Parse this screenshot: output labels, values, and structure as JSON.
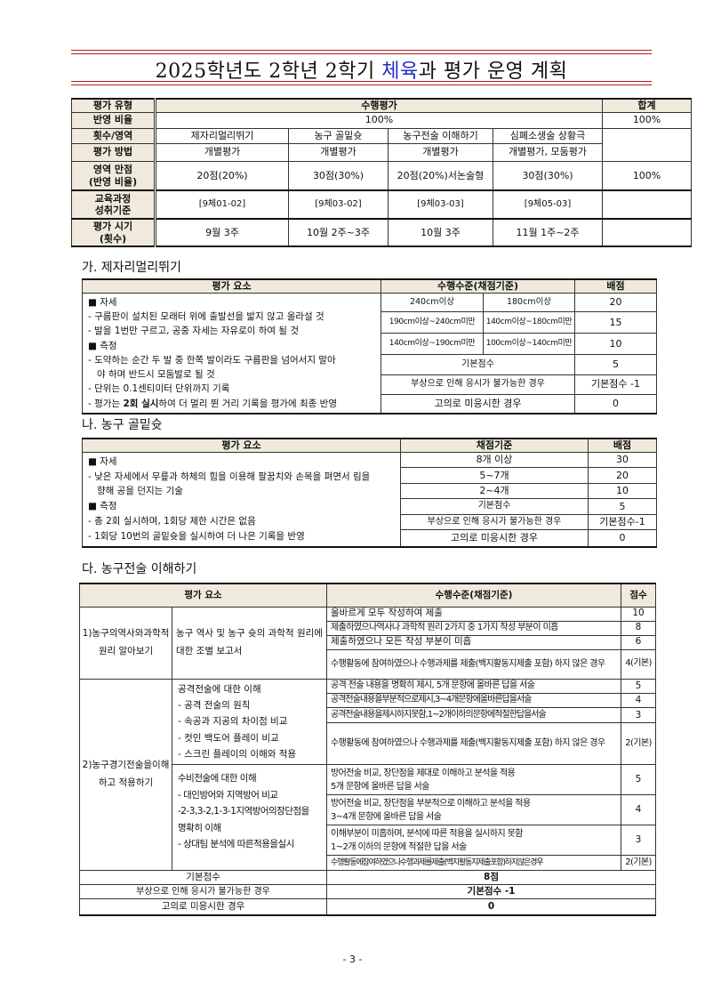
{
  "title": {
    "pre": "2025학년도 2학년 2학기 ",
    "highlight": "체육",
    "post": "과 평가 운영 계획",
    "highlight_color": "#2030c0"
  },
  "overview": {
    "row_labels": [
      "평가 유형",
      "반영 비율",
      "횟수/영역",
      "평가 방법",
      "영역 만점\n(반영 비율)",
      "교육과정\n성취기준",
      "평가 시기\n(횟수)"
    ],
    "type": "수행평가",
    "total_label": "합계",
    "ratio": "100%",
    "ratio_total": "100%",
    "areas": [
      "제자리멀리뛰기",
      "농구 골밑슛",
      "농구전술 이해하기",
      "심폐소생술 상황극"
    ],
    "methods": [
      "개별평가",
      "개별평가",
      "개별평가",
      "개별평가, 모둠평가"
    ],
    "scores": [
      "20점(20%)",
      "30점(30%)",
      "20점(20%)서논술형",
      "30점(30%)"
    ],
    "score_total": "100%",
    "standards": [
      "[9체01-02]",
      "[9체03-02]",
      "[9체03-03]",
      "[9체05-03]"
    ],
    "periods": [
      "9월 3주",
      "10월 2주~3주",
      "10월 3주",
      "11월 1주~2주"
    ]
  },
  "sec1": {
    "heading": "가. 제자리멀리뛰기",
    "h_elem": "평가 요소",
    "h_level": "수행수준(채점기준)",
    "h_score": "배점",
    "elements": [
      "■ 자세",
      "- 구름판이 설치된 모래터 위에 출발선을 밟지 않고 올라설 것",
      "- 발을 1번만 구르고, 공중 자세는 자유로이 하여 될 것",
      "■ 측정",
      "- 도약하는 순간 두 발 중 한쪽 발이라도 구름판을 넘어서지 말아",
      "야 하며 반드시 모둠발로 될 것",
      "- 단위는 0.1센티미터 단위까지 기록"
    ],
    "last_pre": "- 평가는 ",
    "last_bold": "2회 실시",
    "last_post": "하여 더 멀리 뛴 거리 기록을 평가에 최종 반영",
    "rows": [
      {
        "a": "240cm이상",
        "b": "180cm이상",
        "s": "20"
      },
      {
        "a": "190cm이상~240cm미만",
        "b": "140cm이상~180cm미만",
        "s": "15"
      },
      {
        "a": "140cm이상~190cm미만",
        "b": "100cm이상~140cm미만",
        "s": "10"
      }
    ],
    "base": "기본점수",
    "base_s": "5",
    "injury": "부상으로 인해 응시가 불가능한 경우",
    "injury_s": "기본점수 -1",
    "absent": "고의로 미응시한 경우",
    "absent_s": "0"
  },
  "sec2": {
    "heading": "나. 농구 골밑슛",
    "h_elem": "평가 요소",
    "h_level": "채점기준",
    "h_score": "배점",
    "elements": [
      "■ 자세",
      "- 낮은 자세에서 무릎과 하체의 힘을 이용해 팔꿈치와 손목을 펴면서 림을",
      "향해 공을 던지는 기술",
      "■ 측정",
      "- 총 2회 실시하며, 1회당 제한 시간은 없음",
      "- 1회당 10번의 골밑슛을 실시하여 더 나은 기록을 반영"
    ],
    "rows": [
      {
        "c": "8개 이상",
        "s": "30"
      },
      {
        "c": "5~7개",
        "s": "20"
      },
      {
        "c": "2~4개",
        "s": "10"
      },
      {
        "c": "기본점수",
        "s": "5"
      },
      {
        "c": "부상으로 인해 응시가 불가능한 경우",
        "s": "기본점수-1"
      },
      {
        "c": "고의로 미응시한 경우",
        "s": "0"
      }
    ]
  },
  "sec3": {
    "heading": "다. 농구전술 이해하기",
    "h_elem": "평가 요소",
    "h_level": "수행수준(채점기준)",
    "h_score": "점수",
    "g1_title": "1)농구의역사와과학적 원리 알아보기",
    "g1_elem": "농구 역사 및 농구 슛의 과학적 원리에 대한 조별 보고서",
    "g1_rows": [
      {
        "c": "올바르게 모두 작성하여 제출",
        "s": "10"
      },
      {
        "c": "제출하였으나역사나 과학적 원리 2가지 중 1가지 작성 부분이 미흡",
        "s": "8"
      },
      {
        "c": "제출하였으나 모든 작성 부분이 미흡",
        "s": "6"
      },
      {
        "c": "수행활동에 참여하였으나 수행과제를 제출(백지활동지제출 포함) 하지 않은 경우",
        "s": "4(기본)"
      }
    ],
    "g2_title": "2)농구경기전술을이해하고 적용하기",
    "g2_attack": [
      "공격전술에 대한 이해",
      "- 공격 전술의 원칙",
      "- 속공과 지공의 차이점 비교",
      "- 컷인 백도어 플레이 비교",
      "- 스크린 플레이의 이해와 적용"
    ],
    "g2_attack_rows": [
      {
        "c": "공격 전술 내용을 명확히 제시, 5개 문항에 올바른 답을 서술",
        "s": "5"
      },
      {
        "c": "공격전술내용을부분적으로제시,3~4개문항에올바른답을서술",
        "s": "4"
      },
      {
        "c": "공격전술내용을제시하지못함,1~2개이하의문항에적절한답을서술",
        "s": "3"
      },
      {
        "c": "수행활동에 참여하였으나 수행과제를 제출(백지활동지제출 포함) 하지 않은 경우",
        "s": "2(기본)"
      }
    ],
    "g2_defense": [
      "수비전술에 대한 이해",
      "- 대인방어와 지역방어 비교",
      "-2-3,3-2,1-3-1지역방어의장단점을",
      "명확히 이해",
      "- 상대팀 분석에 따른적용을실시"
    ],
    "g2_defense_rows": [
      {
        "c1": "방어전술 비교, 장단점을 제대로 이해하고 분석을 적용",
        "c2": "5개 문항에 올바른 답을 서술",
        "s": "5"
      },
      {
        "c1": "방어전술 비교, 장단점을 부분적으로 이해하고 분석을 적용",
        "c2": "3~4개 문항에 올바른 답을 서술",
        "s": "4"
      },
      {
        "c1": "이해부분이 미흡하며, 분석에 따른 적용을 실시하지 못함",
        "c2": "1~2개 이하의 문항에 적절한 답을 서술",
        "s": "3"
      },
      {
        "c1": "수행활동에참여하였으나수행과제를제출(백지활동지제출포함)하지않은경우",
        "c2": "",
        "s": "2(기본)"
      }
    ],
    "base": "기본점수",
    "base_s": "8점",
    "injury": "부상으로 인해 응시가 불가능한 경우",
    "injury_s": "기본점수 -1",
    "absent": "고의로 미응시한 경우",
    "absent_s": "0"
  },
  "page_number": "- 3 -"
}
